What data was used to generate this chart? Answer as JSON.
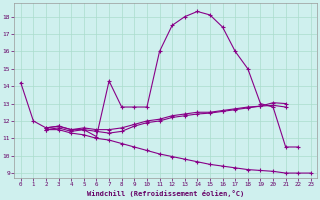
{
  "xlabel": "Windchill (Refroidissement éolien,°C)",
  "xlim": [
    -0.5,
    23.5
  ],
  "ylim": [
    8.7,
    18.8
  ],
  "yticks": [
    9,
    10,
    11,
    12,
    13,
    14,
    15,
    16,
    17,
    18
  ],
  "xticks": [
    0,
    1,
    2,
    3,
    4,
    5,
    6,
    7,
    8,
    9,
    10,
    11,
    12,
    13,
    14,
    15,
    16,
    17,
    18,
    19,
    20,
    21,
    22,
    23
  ],
  "bg_color": "#cff0ee",
  "grid_color": "#aaddcc",
  "line_color": "#880088",
  "curves": [
    {
      "x": [
        0,
        1,
        2,
        3,
        4,
        5,
        6,
        7,
        8,
        9,
        10,
        11,
        12,
        13,
        14,
        15,
        16,
        17,
        18,
        19,
        20,
        21,
        22,
        23
      ],
      "y": [
        14.2,
        12.0,
        11.6,
        11.7,
        11.5,
        11.5,
        11.1,
        14.3,
        12.8,
        12.8,
        12.8,
        16.0,
        17.5,
        18.0,
        18.3,
        18.1,
        17.4,
        16.0,
        15.0,
        13.0,
        12.8,
        10.5,
        10.5,
        null
      ]
    },
    {
      "x": [
        2,
        3,
        4,
        5,
        6,
        7,
        8,
        9,
        10,
        11,
        12,
        13,
        14,
        15,
        16,
        17,
        18,
        19,
        20,
        21
      ],
      "y": [
        11.6,
        11.7,
        11.5,
        11.6,
        11.5,
        11.5,
        11.6,
        11.8,
        12.0,
        12.1,
        12.3,
        12.4,
        12.5,
        12.5,
        12.6,
        12.7,
        12.8,
        12.85,
        12.9,
        12.8
      ]
    },
    {
      "x": [
        2,
        3,
        4,
        5,
        6,
        7,
        8,
        9,
        10,
        11,
        12,
        13,
        14,
        15,
        16,
        17,
        18,
        19,
        20,
        21
      ],
      "y": [
        11.5,
        11.6,
        11.4,
        11.5,
        11.4,
        11.3,
        11.4,
        11.7,
        11.9,
        12.0,
        12.2,
        12.3,
        12.4,
        12.45,
        12.55,
        12.65,
        12.75,
        12.85,
        13.05,
        13.0
      ]
    },
    {
      "x": [
        2,
        3,
        4,
        5,
        6,
        7,
        8,
        9,
        10,
        11,
        12,
        13,
        14,
        15,
        16,
        17,
        18,
        19,
        20,
        21,
        22,
        23
      ],
      "y": [
        11.5,
        11.5,
        11.3,
        11.2,
        11.0,
        10.9,
        10.7,
        10.5,
        10.3,
        10.1,
        9.95,
        9.8,
        9.65,
        9.5,
        9.4,
        9.3,
        9.2,
        9.15,
        9.1,
        9.0,
        9.0,
        9.0
      ]
    }
  ]
}
